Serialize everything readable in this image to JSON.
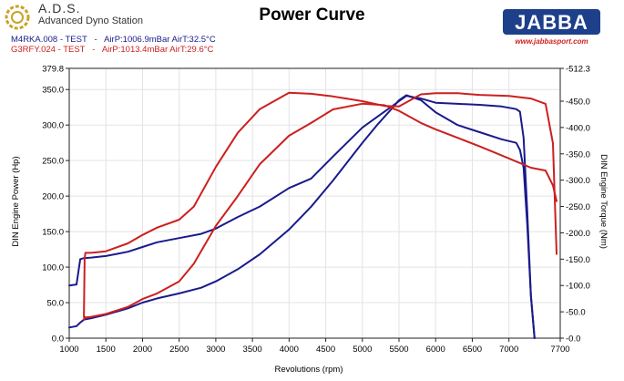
{
  "header": {
    "logo_text": "A.D.S.",
    "logo_subtitle": "Advanced Dyno Station",
    "brand_logo_text": "JABBA",
    "brand_url": "www.jabbasport.com",
    "runs": [
      {
        "name": "M4RKA.008 - TEST",
        "conditions": "AirP:1006.9mBar AirT:32.5°C",
        "color": "#1a1a8c"
      },
      {
        "name": "G3RFY.024 - TEST",
        "conditions": "AirP:1013.4mBar AirT:29.6°C",
        "color": "#cc1f1f"
      }
    ]
  },
  "chart_data": {
    "type": "line",
    "title": "Power Curve",
    "xlabel": "Revolutions (rpm)",
    "ylabel": "DIN Engine Power (Hp)",
    "y2label": "DIN Engine Torque (Nm)",
    "xlim": [
      1000,
      7700
    ],
    "ylim": [
      0,
      379.8
    ],
    "y2lim": [
      0,
      512.3
    ],
    "grid": true,
    "x_ticks": [
      "1000",
      "1500",
      "2000",
      "2500",
      "3000",
      "3500",
      "4000",
      "4500",
      "5000",
      "5500",
      "6000",
      "6500",
      "7000",
      "7700"
    ],
    "y_ticks": [
      "0.0",
      "50.0",
      "100.0",
      "150.0",
      "200.0",
      "250.0",
      "300.0",
      "350.0",
      "379.8"
    ],
    "y2_ticks": [
      "-0.0",
      "-50.0",
      "-100.0",
      "-150.0",
      "-200.0",
      "-250.0",
      "-300.0",
      "-350.0",
      "-400.0",
      "-450.0",
      "-512.3"
    ],
    "series": [
      {
        "run": "M4RKA.008",
        "quantity": "power",
        "axis": "left",
        "color": "#1a1a8c",
        "x": [
          1000,
          1100,
          1150,
          1200,
          1300,
          1500,
          1800,
          2000,
          2200,
          2500,
          2800,
          3000,
          3300,
          3600,
          4000,
          4300,
          4600,
          5000,
          5200,
          5400,
          5500,
          5600,
          5800,
          6000,
          6300,
          6600,
          6900,
          7100,
          7150,
          7200,
          7250,
          7300,
          7350
        ],
        "y": [
          15,
          17,
          22,
          26,
          28,
          33,
          42,
          50,
          56,
          63,
          71,
          80,
          97,
          118,
          153,
          185,
          222,
          275,
          300,
          323,
          335,
          342,
          335,
          318,
          300,
          290,
          280,
          275,
          265,
          240,
          160,
          60,
          0
        ]
      },
      {
        "run": "M4RKA.008",
        "quantity": "torque",
        "axis": "right",
        "color": "#1a1a8c",
        "x": [
          1000,
          1100,
          1150,
          1200,
          1300,
          1500,
          1800,
          2000,
          2200,
          2500,
          2800,
          3000,
          3300,
          3600,
          4000,
          4300,
          4600,
          5000,
          5200,
          5400,
          5500,
          5600,
          5800,
          6000,
          6300,
          6600,
          6900,
          7100,
          7150,
          7200,
          7250,
          7300,
          7350
        ],
        "y": [
          100,
          102,
          150,
          152,
          153,
          156,
          164,
          173,
          182,
          190,
          198,
          208,
          230,
          250,
          285,
          303,
          345,
          400,
          420,
          440,
          450,
          460,
          455,
          447,
          445,
          443,
          440,
          435,
          430,
          380,
          240,
          80,
          0
        ]
      },
      {
        "run": "G3RFY.024",
        "quantity": "power",
        "axis": "left",
        "color": "#cc1f1f",
        "x": [
          1200,
          1210,
          1220,
          1300,
          1500,
          1800,
          2000,
          2200,
          2500,
          2700,
          3000,
          3300,
          3600,
          4000,
          4300,
          4600,
          5000,
          5300,
          5500,
          5800,
          6000,
          6300,
          6600,
          7000,
          7300,
          7500,
          7600,
          7650
        ],
        "y": [
          26,
          30,
          29,
          30,
          34,
          44,
          55,
          63,
          80,
          105,
          158,
          200,
          245,
          285,
          303,
          322,
          330,
          328,
          320,
          303,
          294,
          282,
          270,
          253,
          240,
          236,
          215,
          193
        ]
      },
      {
        "run": "G3RFY.024",
        "quantity": "torque",
        "axis": "right",
        "color": "#cc1f1f",
        "x": [
          1200,
          1210,
          1220,
          1300,
          1500,
          1800,
          2000,
          2200,
          2500,
          2700,
          3000,
          3300,
          3600,
          4000,
          4300,
          4600,
          5000,
          5300,
          5500,
          5800,
          6000,
          6300,
          6600,
          7000,
          7300,
          7500,
          7600,
          7650
        ],
        "y": [
          40,
          150,
          162,
          162,
          165,
          180,
          196,
          210,
          225,
          250,
          325,
          390,
          435,
          466,
          464,
          459,
          450,
          441,
          440,
          463,
          465,
          465,
          462,
          460,
          455,
          445,
          370,
          160
        ]
      }
    ]
  }
}
